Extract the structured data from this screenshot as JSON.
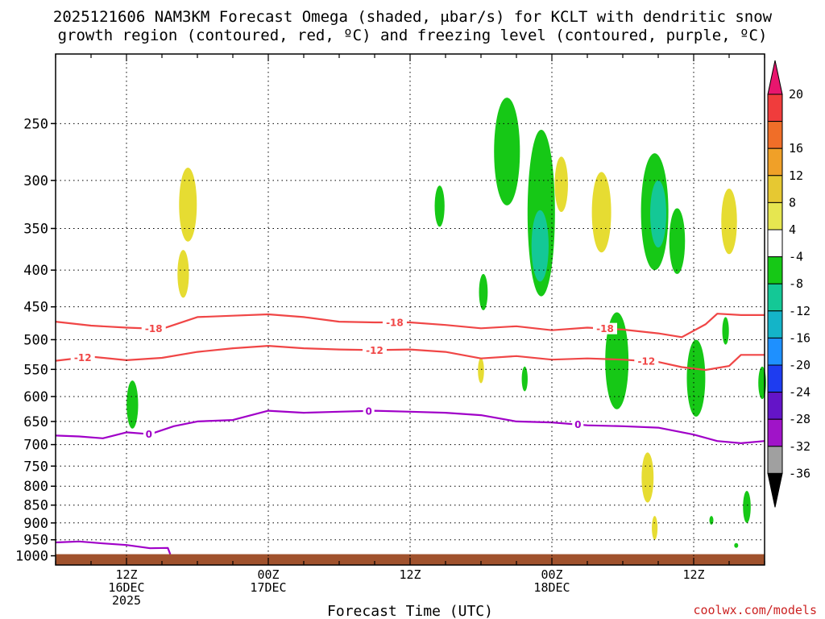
{
  "title": {
    "line1": "2025121606 NAM3KM Forecast Omega (shaded, μbar/s) for KCLT with dendritic snow",
    "line2": "growth region (contoured, red, ºC) and freezing level (contoured, purple, ºC)"
  },
  "credit": "coolwx.com/models",
  "chart_data": {
    "type": "heatmap",
    "title": "2025121606 NAM3KM Forecast Omega (shaded, μbar/s) for KCLT with dendritic snow growth region (contoured, red, ºC) and freezing level (contoured, purple, ºC)",
    "xlabel": "Forecast Time (UTC)",
    "ylabel": "",
    "x_unit": "hours from 2025-12-16 06Z",
    "xlim": [
      0,
      60
    ],
    "ylim": [
      1030,
      200
    ],
    "y_ticks": [
      250,
      300,
      350,
      400,
      450,
      500,
      550,
      600,
      650,
      700,
      750,
      800,
      850,
      900,
      950,
      1000
    ],
    "x_ticks": [
      {
        "x": 6,
        "lines": [
          "12Z",
          "16DEC",
          "2025"
        ]
      },
      {
        "x": 18,
        "lines": [
          "00Z",
          "17DEC"
        ]
      },
      {
        "x": 30,
        "lines": [
          "12Z"
        ]
      },
      {
        "x": 42,
        "lines": [
          "00Z",
          "18DEC"
        ]
      },
      {
        "x": 54,
        "lines": [
          "12Z"
        ]
      }
    ],
    "grid": true,
    "colorbar": {
      "labels": [
        "20",
        "16",
        "12",
        "8",
        "4",
        "-4",
        "-8",
        "-12",
        "-16",
        "-20",
        "-24",
        "-28",
        "-32",
        "-36"
      ],
      "colors": [
        "#e8166e",
        "#f03c3c",
        "#f06e28",
        "#f0a028",
        "#e6c832",
        "#e6e650",
        "#ffffff",
        "#16c816",
        "#14c896",
        "#14b4c8",
        "#1e90ff",
        "#1e3cf0",
        "#6414c8",
        "#a014c8",
        "#a0a0a0",
        "#000000"
      ]
    },
    "omega_regions": [
      {
        "fill": "#e6dc32",
        "x": 11.2,
        "p_top": 288,
        "p_bot": 365
      },
      {
        "fill": "#e6dc32",
        "x": 10.8,
        "p_top": 375,
        "p_bot": 437
      },
      {
        "fill": "#16c816",
        "x": 6.5,
        "p_top": 570,
        "p_bot": 665
      },
      {
        "fill": "#16c816",
        "x": 32.5,
        "p_top": 305,
        "p_bot": 348
      },
      {
        "fill": "#16c816",
        "x": 36.2,
        "p_top": 405,
        "p_bot": 455
      },
      {
        "fill": "#16c816",
        "x": 38.2,
        "p_top": 230,
        "p_bot": 325
      },
      {
        "fill": "#16c816",
        "x": 41.1,
        "p_top": 255,
        "p_bot": 435
      },
      {
        "fill": "#14c896",
        "x": 41.0,
        "p_top": 330,
        "p_bot": 415
      },
      {
        "fill": "#e6dc32",
        "x": 42.8,
        "p_top": 278,
        "p_bot": 332
      },
      {
        "fill": "#e6dc32",
        "x": 46.2,
        "p_top": 292,
        "p_bot": 378
      },
      {
        "fill": "#16c816",
        "x": 47.5,
        "p_top": 458,
        "p_bot": 625
      },
      {
        "fill": "#16c816",
        "x": 50.7,
        "p_top": 275,
        "p_bot": 400
      },
      {
        "fill": "#14c896",
        "x": 51.0,
        "p_top": 300,
        "p_bot": 372
      },
      {
        "fill": "#16c816",
        "x": 52.6,
        "p_top": 328,
        "p_bot": 405
      },
      {
        "fill": "#16c816",
        "x": 54.2,
        "p_top": 500,
        "p_bot": 640
      },
      {
        "fill": "#e6dc32",
        "x": 50.1,
        "p_top": 718,
        "p_bot": 843
      },
      {
        "fill": "#e6dc32",
        "x": 50.7,
        "p_top": 880,
        "p_bot": 950
      },
      {
        "fill": "#16c816",
        "x": 56.7,
        "p_top": 465,
        "p_bot": 508
      },
      {
        "fill": "#e6dc32",
        "x": 57.0,
        "p_top": 308,
        "p_bot": 380
      },
      {
        "fill": "#16c816",
        "x": 58.5,
        "p_top": 812,
        "p_bot": 900
      },
      {
        "fill": "#16c816",
        "x": 59.8,
        "p_top": 545,
        "p_bot": 605
      },
      {
        "fill": "#16c816",
        "x": 39.7,
        "p_top": 545,
        "p_bot": 590
      },
      {
        "fill": "#e6dc32",
        "x": 36.0,
        "p_top": 530,
        "p_bot": 575
      },
      {
        "fill": "#16c816",
        "x": 55.5,
        "p_top": 880,
        "p_bot": 905
      },
      {
        "fill": "#16c816",
        "x": 57.6,
        "p_top": 960,
        "p_bot": 975
      }
    ],
    "series": [
      {
        "name": "-18",
        "color": "#f04646",
        "label_at_x": [
          8.3,
          28.7,
          46.5
        ],
        "x": [
          0,
          3,
          6,
          9,
          12,
          15,
          18,
          21,
          24,
          27,
          30,
          33,
          36,
          39,
          42,
          45,
          48,
          51,
          53,
          55,
          56,
          58,
          60
        ],
        "y": [
          472,
          478,
          481,
          483,
          465,
          463,
          461,
          465,
          472,
          473,
          473,
          477,
          482,
          479,
          485,
          481,
          484,
          490,
          496,
          476,
          460,
          462,
          462
        ]
      },
      {
        "name": "-12",
        "color": "#f04646",
        "label_at_x": [
          2.3,
          27.0,
          50.0
        ],
        "x": [
          0,
          3,
          6,
          9,
          12,
          15,
          18,
          21,
          24,
          27,
          30,
          33,
          36,
          39,
          42,
          45,
          48,
          51,
          53,
          55,
          57,
          58,
          60
        ],
        "y": [
          535,
          528,
          534,
          530,
          520,
          514,
          510,
          514,
          516,
          517,
          516,
          520,
          531,
          527,
          533,
          531,
          533,
          537,
          546,
          551,
          544,
          525,
          525
        ]
      },
      {
        "name": "0",
        "color": "#a000c8",
        "label_at_x": [
          7.9,
          26.5,
          44.2
        ],
        "x": [
          0,
          2,
          4,
          6,
          8,
          10,
          12,
          15,
          18,
          21,
          24,
          27,
          30,
          33,
          36,
          39,
          42,
          45,
          48,
          51,
          54,
          56,
          58,
          60
        ],
        "y": [
          680,
          682,
          686,
          673,
          677,
          660,
          650,
          647,
          628,
          632,
          630,
          628,
          630,
          632,
          637,
          650,
          652,
          658,
          660,
          663,
          678,
          692,
          697,
          692
        ]
      },
      {
        "name": "0 (near surface)",
        "color": "#a000c8",
        "label_at_x": [],
        "x": [
          0,
          2,
          4,
          6,
          8,
          9.5,
          9.7
        ],
        "y": [
          958,
          955,
          961,
          966,
          976,
          975,
          995
        ]
      }
    ]
  }
}
